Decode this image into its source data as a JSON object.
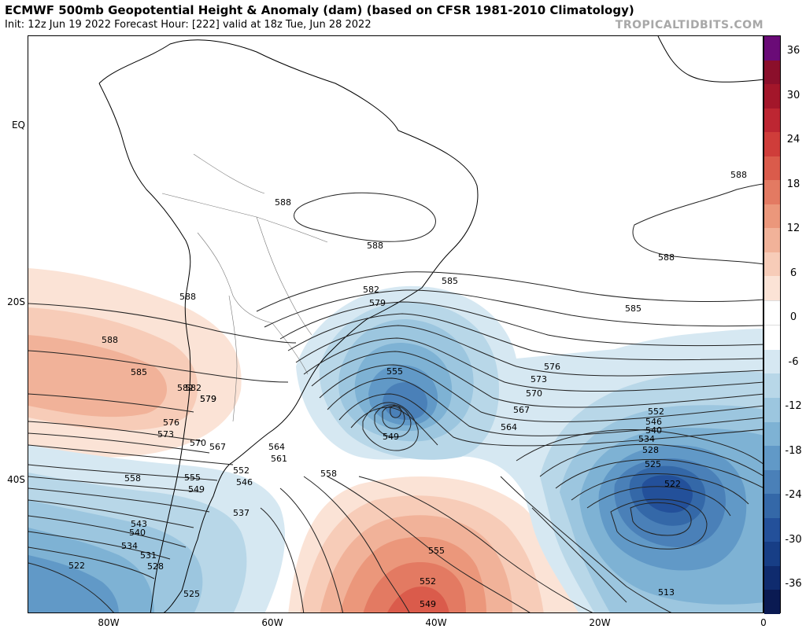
{
  "header": {
    "title": "ECMWF 500mb Geopotential Height & Anomaly (dam) (based on CFSR 1981-2010 Climatology)",
    "subtitle": "Init: 12z Jun 19 2022   Forecast Hour: [222]   valid at 18z Tue, Jun 28 2022",
    "brand": "TROPICALTIDBITS.COM"
  },
  "axes": {
    "y_labels": [
      "EQ",
      "20S",
      "40S"
    ],
    "x_labels": [
      "80W",
      "60W",
      "40W",
      "20W",
      "0"
    ]
  },
  "colorbar": {
    "labels": [
      "36",
      "30",
      "24",
      "18",
      "12",
      "6",
      "0",
      "-6",
      "-12",
      "-18",
      "-24",
      "-30",
      "-36"
    ],
    "colors": [
      "#6a0b77",
      "#8b0f2b",
      "#a3162a",
      "#bd2632",
      "#cf3d3a",
      "#da5b4b",
      "#e37a62",
      "#eb977b",
      "#f1b299",
      "#f7ccb8",
      "#fbe3d6",
      "#ffffff",
      "#ffffff",
      "#d6e8f2",
      "#b8d7e8",
      "#9cc6df",
      "#7eb2d4",
      "#6199c7",
      "#4a80b8",
      "#3468a8",
      "#23509a",
      "#173e86",
      "#0f2b6e",
      "#0a1a52"
    ]
  },
  "contour_labels": [
    "588",
    "588",
    "588",
    "588",
    "588",
    "585",
    "585",
    "582",
    "579",
    "576",
    "573",
    "570",
    "567",
    "564",
    "561",
    "558",
    "555",
    "552",
    "549",
    "546",
    "543",
    "540",
    "537",
    "534",
    "531",
    "528",
    "525",
    "522",
    "582",
    "579",
    "588",
    "585",
    "582",
    "579",
    "576",
    "573",
    "570",
    "567",
    "564",
    "555",
    "549",
    "558",
    "555",
    "552",
    "549",
    "552",
    "546",
    "540",
    "534",
    "528",
    "525",
    "522",
    "513"
  ]
}
